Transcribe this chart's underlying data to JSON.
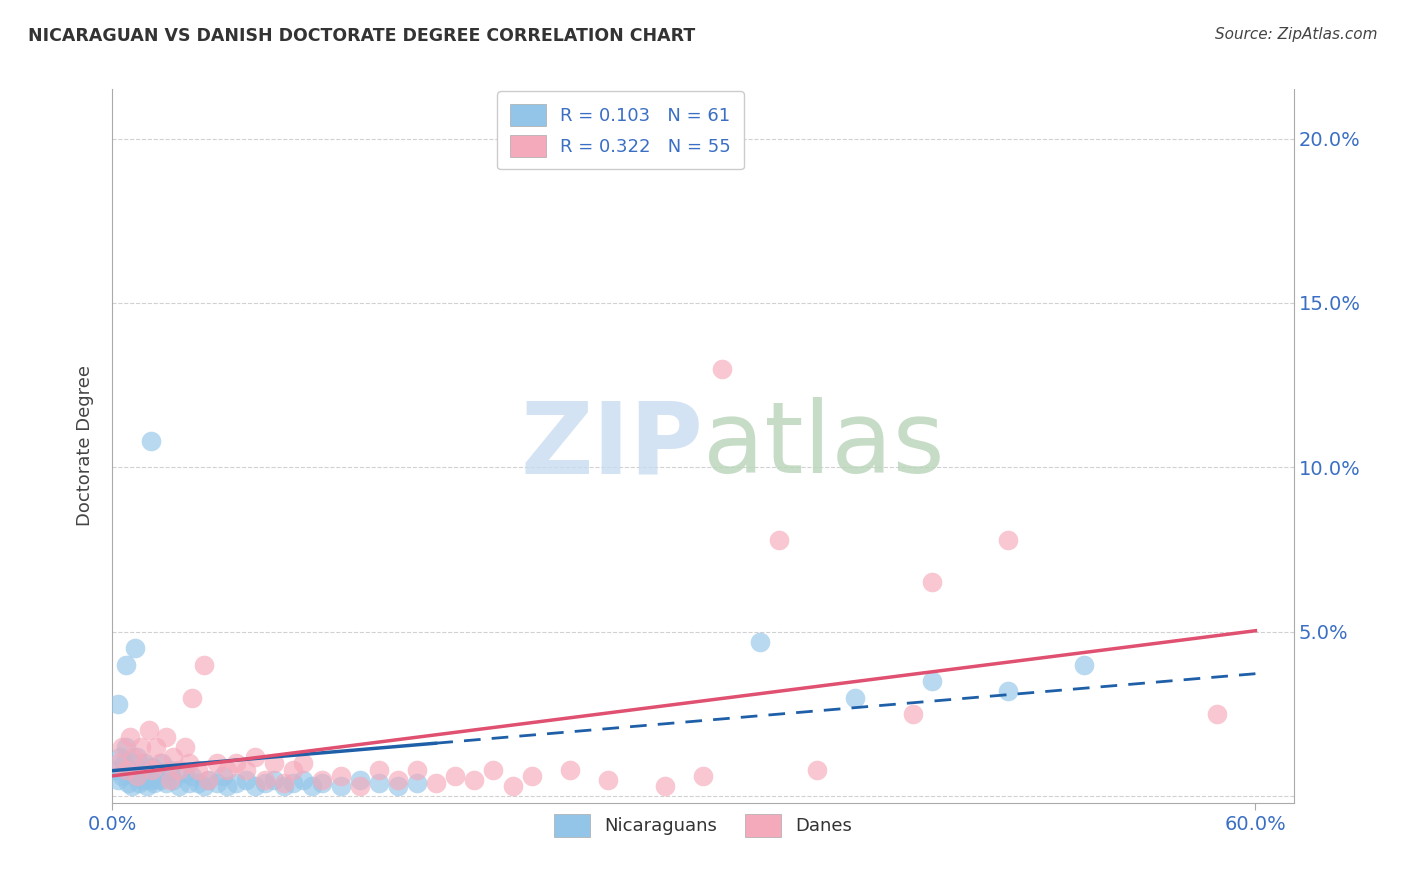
{
  "title": "NICARAGUAN VS DANISH DOCTORATE DEGREE CORRELATION CHART",
  "source": "Source: ZipAtlas.com",
  "ylabel": "Doctorate Degree",
  "xlim": [
    0.0,
    0.62
  ],
  "ylim": [
    -0.002,
    0.215
  ],
  "yticks": [
    0.0,
    0.05,
    0.1,
    0.15,
    0.2
  ],
  "ytick_labels": [
    "",
    "5.0%",
    "10.0%",
    "15.0%",
    "20.0%"
  ],
  "xticks": [
    0.0,
    0.6
  ],
  "xtick_labels": [
    "0.0%",
    "60.0%"
  ],
  "blue_color": "#92C5E8",
  "pink_color": "#F5AABB",
  "blue_line_color": "#1E5FA8",
  "pink_line_color": "#E05070",
  "legend_R_blue": "R = 0.103",
  "legend_N_blue": "N = 61",
  "legend_R_pink": "R = 0.322",
  "legend_N_pink": "N = 55",
  "blue_scatter_x": [
    0.002,
    0.003,
    0.004,
    0.005,
    0.006,
    0.007,
    0.008,
    0.009,
    0.01,
    0.011,
    0.012,
    0.013,
    0.014,
    0.015,
    0.016,
    0.017,
    0.018,
    0.019,
    0.02,
    0.021,
    0.022,
    0.023,
    0.025,
    0.026,
    0.028,
    0.03,
    0.032,
    0.035,
    0.038,
    0.04,
    0.042,
    0.045,
    0.048,
    0.05,
    0.055,
    0.058,
    0.06,
    0.065,
    0.07,
    0.075,
    0.08,
    0.085,
    0.09,
    0.095,
    0.1,
    0.105,
    0.11,
    0.12,
    0.13,
    0.14,
    0.15,
    0.16,
    0.003,
    0.007,
    0.012,
    0.34,
    0.39,
    0.43,
    0.47,
    0.51,
    0.02
  ],
  "blue_scatter_y": [
    0.008,
    0.005,
    0.012,
    0.006,
    0.01,
    0.015,
    0.004,
    0.008,
    0.003,
    0.01,
    0.006,
    0.012,
    0.004,
    0.008,
    0.005,
    0.01,
    0.003,
    0.007,
    0.005,
    0.009,
    0.004,
    0.008,
    0.005,
    0.01,
    0.004,
    0.008,
    0.005,
    0.003,
    0.007,
    0.004,
    0.006,
    0.004,
    0.003,
    0.005,
    0.004,
    0.006,
    0.003,
    0.004,
    0.005,
    0.003,
    0.004,
    0.005,
    0.003,
    0.004,
    0.005,
    0.003,
    0.004,
    0.003,
    0.005,
    0.004,
    0.003,
    0.004,
    0.028,
    0.04,
    0.045,
    0.047,
    0.03,
    0.035,
    0.032,
    0.04,
    0.108
  ],
  "pink_scatter_x": [
    0.003,
    0.005,
    0.007,
    0.009,
    0.011,
    0.013,
    0.015,
    0.017,
    0.019,
    0.021,
    0.023,
    0.025,
    0.028,
    0.03,
    0.032,
    0.035,
    0.038,
    0.04,
    0.042,
    0.045,
    0.048,
    0.05,
    0.055,
    0.06,
    0.065,
    0.07,
    0.075,
    0.08,
    0.085,
    0.09,
    0.095,
    0.1,
    0.11,
    0.12,
    0.13,
    0.14,
    0.15,
    0.16,
    0.17,
    0.18,
    0.19,
    0.2,
    0.21,
    0.22,
    0.24,
    0.26,
    0.29,
    0.31,
    0.37,
    0.43,
    0.47,
    0.58,
    0.35,
    0.42,
    0.32
  ],
  "pink_scatter_y": [
    0.01,
    0.015,
    0.008,
    0.018,
    0.012,
    0.006,
    0.015,
    0.01,
    0.02,
    0.008,
    0.015,
    0.01,
    0.018,
    0.005,
    0.012,
    0.008,
    0.015,
    0.01,
    0.03,
    0.008,
    0.04,
    0.005,
    0.01,
    0.008,
    0.01,
    0.008,
    0.012,
    0.005,
    0.01,
    0.004,
    0.008,
    0.01,
    0.005,
    0.006,
    0.003,
    0.008,
    0.005,
    0.008,
    0.004,
    0.006,
    0.005,
    0.008,
    0.003,
    0.006,
    0.008,
    0.005,
    0.003,
    0.006,
    0.008,
    0.065,
    0.078,
    0.025,
    0.078,
    0.025,
    0.13
  ],
  "blue_regression": [
    0.0,
    0.17,
    0.6
  ],
  "pink_regression": [
    0.0,
    0.6
  ],
  "background_color": "#FFFFFF",
  "grid_color": "#CCCCCC"
}
